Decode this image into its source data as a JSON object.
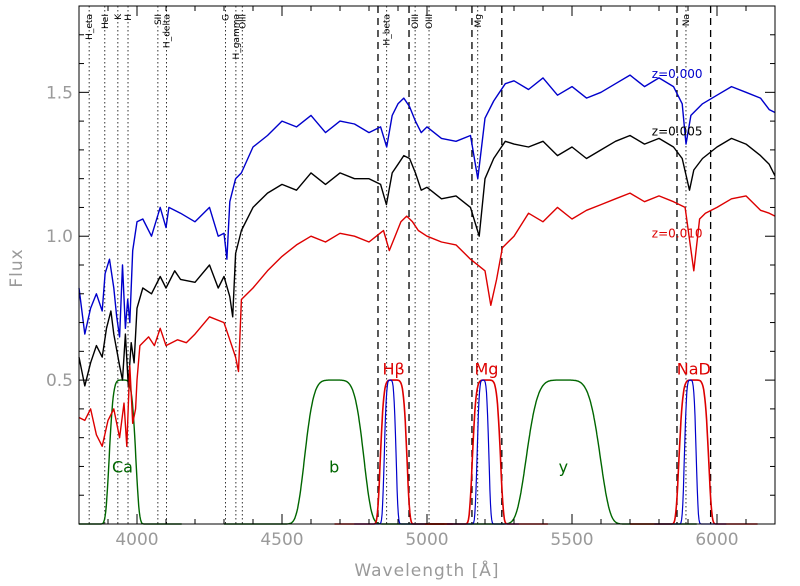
{
  "chart_data": {
    "type": "line",
    "title": "",
    "xlabel": "Wavelength [Å]",
    "ylabel": "Flux",
    "xlim": [
      3800,
      6200
    ],
    "ylim": [
      0.0,
      1.8
    ],
    "x_ticks": [
      4000,
      4500,
      5000,
      5500,
      6000
    ],
    "x_tick_labels": [
      "4000",
      "4500",
      "5000",
      "5500",
      "6000"
    ],
    "y_ticks": [
      0.5,
      1.0,
      1.5
    ],
    "y_tick_labels": [
      "0.5",
      "1.0",
      "1.5"
    ],
    "colors": {
      "z000": "#0000cc",
      "z005": "#000000",
      "z010": "#dd0000",
      "stromgren": "#006600",
      "narrow_fill": "#dd0000",
      "narrow_inner": "#0000cc"
    },
    "spectra": [
      {
        "name": "z=0.000",
        "color_key": "z000",
        "x": [
          3800,
          3820,
          3840,
          3860,
          3880,
          3890,
          3905,
          3920,
          3930,
          3940,
          3950,
          3960,
          3968,
          3975,
          3985,
          4000,
          4020,
          4050,
          4080,
          4100,
          4110,
          4150,
          4200,
          4250,
          4280,
          4300,
          4310,
          4320,
          4340,
          4360,
          4400,
          4450,
          4500,
          4550,
          4600,
          4650,
          4700,
          4750,
          4800,
          4840,
          4861,
          4880,
          4900,
          4920,
          4940,
          4960,
          4980,
          5000,
          5050,
          5100,
          5150,
          5175,
          5200,
          5230,
          5250,
          5270,
          5300,
          5350,
          5400,
          5450,
          5500,
          5550,
          5600,
          5650,
          5700,
          5750,
          5800,
          5850,
          5880,
          5893,
          5910,
          5950,
          6000,
          6050,
          6100,
          6150,
          6180,
          6200
        ],
        "y": [
          0.82,
          0.66,
          0.75,
          0.8,
          0.74,
          0.87,
          0.92,
          0.82,
          0.72,
          0.65,
          0.9,
          0.68,
          0.78,
          0.7,
          0.95,
          1.05,
          1.06,
          1.0,
          1.1,
          1.03,
          1.1,
          1.08,
          1.05,
          1.1,
          1.0,
          1.01,
          0.92,
          1.12,
          1.2,
          1.22,
          1.31,
          1.35,
          1.4,
          1.38,
          1.42,
          1.36,
          1.4,
          1.39,
          1.36,
          1.38,
          1.31,
          1.42,
          1.46,
          1.48,
          1.45,
          1.4,
          1.36,
          1.38,
          1.34,
          1.33,
          1.35,
          1.2,
          1.41,
          1.47,
          1.5,
          1.53,
          1.54,
          1.51,
          1.55,
          1.49,
          1.52,
          1.48,
          1.5,
          1.53,
          1.56,
          1.52,
          1.55,
          1.52,
          1.46,
          1.32,
          1.42,
          1.46,
          1.49,
          1.52,
          1.5,
          1.48,
          1.44,
          1.43
        ]
      },
      {
        "name": "z=0.005",
        "color_key": "z005",
        "x": [
          3800,
          3820,
          3840,
          3860,
          3880,
          3895,
          3910,
          3920,
          3940,
          3950,
          3960,
          3970,
          3980,
          3990,
          4000,
          4020,
          4050,
          4080,
          4100,
          4130,
          4150,
          4200,
          4250,
          4280,
          4300,
          4320,
          4330,
          4340,
          4360,
          4400,
          4450,
          4500,
          4550,
          4600,
          4650,
          4700,
          4750,
          4800,
          4840,
          4860,
          4880,
          4900,
          4920,
          4940,
          4960,
          4980,
          5000,
          5050,
          5100,
          5150,
          5180,
          5200,
          5230,
          5250,
          5270,
          5300,
          5350,
          5400,
          5450,
          5500,
          5550,
          5600,
          5650,
          5700,
          5750,
          5800,
          5850,
          5880,
          5905,
          5920,
          5950,
          6000,
          6050,
          6100,
          6150,
          6180,
          6200
        ],
        "y": [
          0.58,
          0.48,
          0.56,
          0.62,
          0.58,
          0.68,
          0.74,
          0.66,
          0.55,
          0.5,
          0.66,
          0.48,
          0.63,
          0.56,
          0.75,
          0.82,
          0.8,
          0.86,
          0.82,
          0.88,
          0.85,
          0.84,
          0.9,
          0.82,
          0.86,
          0.79,
          0.72,
          0.94,
          1.02,
          1.1,
          1.15,
          1.18,
          1.16,
          1.22,
          1.18,
          1.22,
          1.2,
          1.2,
          1.18,
          1.11,
          1.22,
          1.25,
          1.28,
          1.27,
          1.22,
          1.16,
          1.17,
          1.13,
          1.14,
          1.1,
          1.0,
          1.2,
          1.27,
          1.3,
          1.33,
          1.32,
          1.31,
          1.33,
          1.28,
          1.31,
          1.27,
          1.3,
          1.33,
          1.35,
          1.32,
          1.34,
          1.31,
          1.27,
          1.16,
          1.23,
          1.27,
          1.31,
          1.34,
          1.32,
          1.28,
          1.25,
          1.21
        ]
      },
      {
        "name": "z=0.010",
        "color_key": "z010",
        "x": [
          3800,
          3820,
          3840,
          3860,
          3880,
          3900,
          3920,
          3940,
          3955,
          3965,
          3975,
          3985,
          3995,
          4000,
          4010,
          4040,
          4060,
          4080,
          4100,
          4140,
          4170,
          4200,
          4250,
          4300,
          4320,
          4340,
          4350,
          4360,
          4400,
          4450,
          4500,
          4550,
          4600,
          4650,
          4700,
          4750,
          4800,
          4850,
          4870,
          4890,
          4910,
          4930,
          4950,
          4970,
          5000,
          5050,
          5100,
          5150,
          5200,
          5220,
          5240,
          5260,
          5300,
          5350,
          5400,
          5450,
          5500,
          5550,
          5600,
          5650,
          5700,
          5750,
          5800,
          5850,
          5890,
          5920,
          5940,
          5960,
          6000,
          6050,
          6100,
          6150,
          6180,
          6200
        ],
        "y": [
          0.37,
          0.36,
          0.4,
          0.31,
          0.27,
          0.36,
          0.4,
          0.3,
          0.42,
          0.27,
          0.55,
          0.35,
          0.4,
          0.5,
          0.62,
          0.65,
          0.62,
          0.68,
          0.62,
          0.64,
          0.63,
          0.66,
          0.72,
          0.7,
          0.64,
          0.58,
          0.53,
          0.78,
          0.82,
          0.88,
          0.93,
          0.97,
          1.0,
          0.98,
          1.01,
          1.0,
          0.98,
          1.02,
          0.95,
          1.0,
          1.05,
          1.07,
          1.05,
          1.02,
          1.0,
          0.98,
          0.97,
          0.92,
          0.88,
          0.76,
          0.85,
          0.96,
          1.0,
          1.08,
          1.05,
          1.1,
          1.06,
          1.09,
          1.11,
          1.13,
          1.15,
          1.12,
          1.14,
          1.12,
          1.1,
          0.88,
          1.06,
          1.08,
          1.1,
          1.13,
          1.14,
          1.09,
          1.08,
          1.07
        ]
      }
    ],
    "spectrum_labels": [
      {
        "text": "z=0.000",
        "x": 5950,
        "y": 1.55,
        "color_key": "z000"
      },
      {
        "text": "z=0.005",
        "x": 5950,
        "y": 1.35,
        "color_key": "z005"
      },
      {
        "text": "z=0.010",
        "x": 5950,
        "y": 0.995,
        "color_key": "z010"
      }
    ],
    "line_ids": [
      {
        "label": "H_eta",
        "x": 3835
      },
      {
        "label": "HeI",
        "x": 3889
      },
      {
        "label": "K",
        "x": 3934
      },
      {
        "label": "H",
        "x": 3969
      },
      {
        "label": "SII",
        "x": 4072
      },
      {
        "label": "H_delta",
        "x": 4102
      },
      {
        "label": "G",
        "x": 4305
      },
      {
        "label": "H_gamma",
        "x": 4341
      },
      {
        "label": "OIII",
        "x": 4363
      },
      {
        "label": "H_beta",
        "x": 4861
      },
      {
        "label": "OIII",
        "x": 4959
      },
      {
        "label": "OIII",
        "x": 5007
      },
      {
        "label": "Mg",
        "x": 5175
      },
      {
        "label": "Na",
        "x": 5893
      }
    ],
    "narrow_band_edges": [
      4831,
      4938,
      5155,
      5258,
      5862,
      5978
    ],
    "stromgren_filters": [
      {
        "name": "Ca",
        "center": 3950,
        "fwhm": 90,
        "peak": 0.5,
        "label_y": 0.2
      },
      {
        "name": "b",
        "center": 4680,
        "fwhm": 200,
        "peak": 0.5,
        "label_y": 0.2
      },
      {
        "name": "y",
        "center": 5470,
        "fwhm": 250,
        "peak": 0.5,
        "label_y": 0.2
      }
    ],
    "narrow_filters": [
      {
        "name": "Hβ",
        "center": 4885,
        "fwhm": 90,
        "inner_fwhm": 40,
        "peak": 0.5,
        "label_y": 0.52
      },
      {
        "name": "Mg",
        "center": 5205,
        "fwhm": 95,
        "inner_fwhm": 40,
        "peak": 0.5,
        "label_y": 0.52
      },
      {
        "name": "NaD",
        "center": 5920,
        "fwhm": 100,
        "inner_fwhm": 40,
        "peak": 0.5,
        "label_y": 0.52
      }
    ]
  }
}
